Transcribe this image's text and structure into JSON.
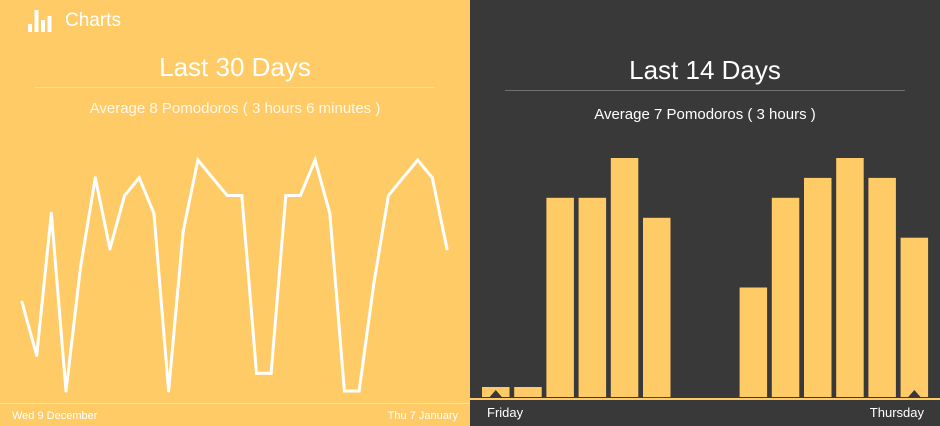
{
  "header": {
    "title": "Charts",
    "icon": "bar-chart-icon"
  },
  "colors": {
    "accent": "#FFCB66",
    "dark": "#393939",
    "text": "#FFFFFF"
  },
  "left_panel": {
    "title": "Last 30 Days",
    "subtitle": "Average 8 Pomodoros ( 3 hours 6 minutes )",
    "start_label": "Wed 9 December",
    "end_label": "Thu 7 January"
  },
  "right_panel": {
    "title": "Last 14 Days",
    "subtitle": "Average 7 Pomodoros ( 3 hours )",
    "start_label": "Friday",
    "end_label": "Thursday"
  },
  "chart_data": [
    {
      "type": "line",
      "title": "Last 30 Days",
      "subtitle": "Average 8 Pomodoros ( 3 hours 6 minutes )",
      "x": [
        "Wed 9 December",
        "",
        "",
        "",
        "",
        "",
        "",
        "",
        "",
        "",
        "",
        "",
        "",
        "",
        "",
        "",
        "",
        "",
        "",
        "",
        "",
        "",
        "",
        "",
        "",
        "",
        "",
        "",
        "",
        "Thu 7 January"
      ],
      "values": [
        5,
        2,
        10,
        0,
        7,
        12,
        8,
        11,
        12,
        10,
        0,
        9,
        13,
        12,
        11,
        11,
        1,
        1,
        11,
        11,
        13,
        10,
        0,
        0,
        6,
        11,
        12,
        13,
        12,
        8
      ],
      "ylim": [
        0,
        13
      ],
      "grid": false,
      "legend": "none"
    },
    {
      "type": "bar",
      "title": "Last 14 Days",
      "subtitle": "Average 7 Pomodoros ( 3 hours )",
      "categories": [
        "Friday",
        "",
        "",
        "",
        "",
        "",
        "",
        "",
        "",
        "",
        "",
        "",
        "",
        "Thursday"
      ],
      "values": [
        0.5,
        0.5,
        10,
        10,
        12,
        9,
        0,
        0,
        5.5,
        10,
        11,
        12,
        11,
        8
      ],
      "ylim": [
        0,
        12
      ],
      "grid": false,
      "legend": "none"
    }
  ]
}
